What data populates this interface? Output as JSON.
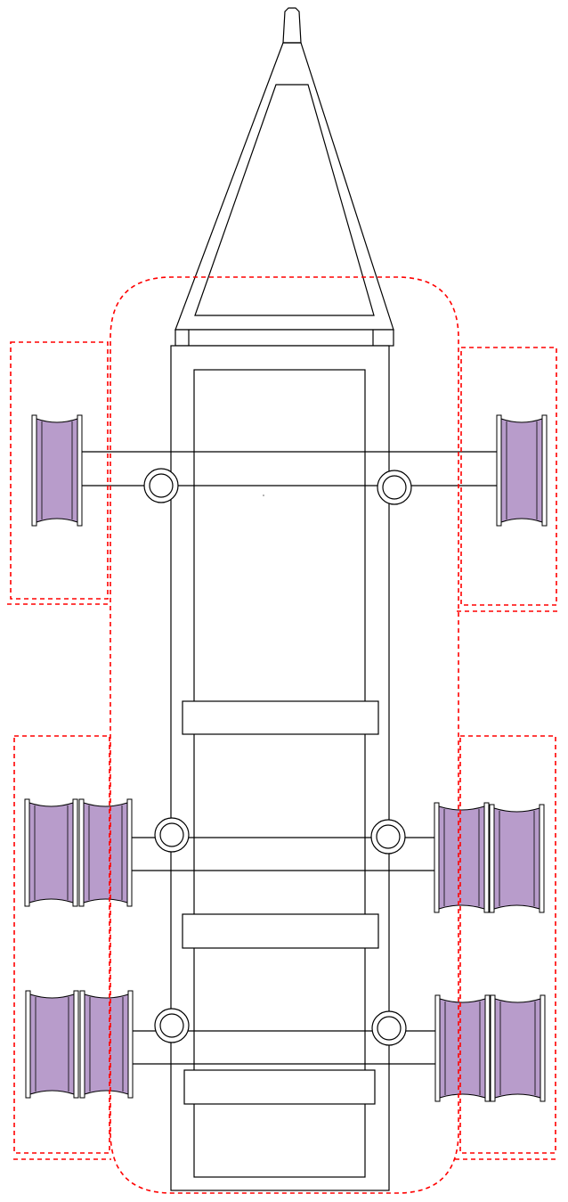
{
  "colors": {
    "tire_fill": "#b89ccb",
    "zone_stroke": "#ff0000",
    "line": "#000000",
    "background": "#ffffff"
  },
  "diagram": {
    "type": "trailer-chassis-top-view",
    "axles": [
      {
        "name": "front-axle",
        "wheels_per_side": 1
      },
      {
        "name": "rear-axle-1",
        "wheels_per_side": 2
      },
      {
        "name": "rear-axle-2",
        "wheels_per_side": 2
      }
    ],
    "cross_members": 3,
    "hitch": "a-frame-tongue",
    "dashed_zones": [
      "body-envelope",
      "front-left-wheel-zone",
      "front-right-wheel-zone",
      "rear-left-wheel-zone",
      "rear-right-wheel-zone"
    ]
  }
}
